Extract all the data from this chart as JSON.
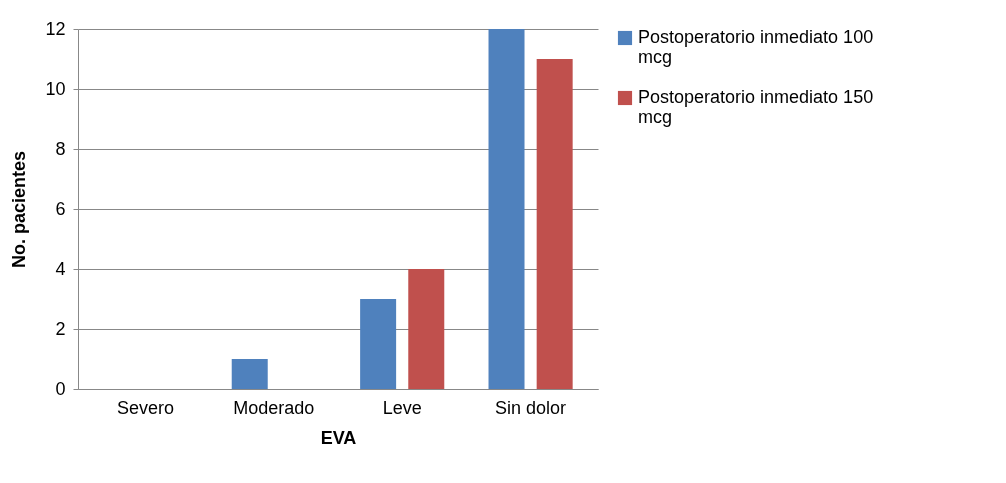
{
  "chart_data": {
    "type": "bar",
    "xlabel": "EVA",
    "ylabel": "No. pacientes",
    "categories": [
      "Severo",
      "Moderado",
      "Leve",
      "Sin dolor"
    ],
    "series": [
      {
        "name": "Postoperatorio inmediato 100 mcg",
        "color": "#4f81bd",
        "values": [
          0,
          1,
          3,
          12
        ]
      },
      {
        "name": "Postoperatorio inmediato 150 mcg",
        "color": "#c0504d",
        "values": [
          0,
          0,
          4,
          11
        ]
      }
    ],
    "ylim": [
      0,
      12
    ],
    "yticks": [
      0,
      2,
      4,
      6,
      8,
      10,
      12
    ],
    "grid": "y",
    "legend": "right"
  }
}
